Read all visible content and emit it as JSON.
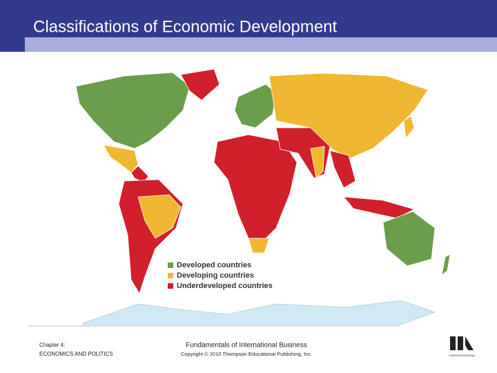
{
  "header": {
    "title": "Classifications of Economic Development"
  },
  "legend": [
    {
      "label": "Developed countries",
      "color": "#6a9e4b"
    },
    {
      "label": "Developing countries",
      "color": "#f0b830"
    },
    {
      "label": "Underdeveloped countries",
      "color": "#d0202b"
    }
  ],
  "footer": {
    "chapter": "Chapter 4:",
    "chapter_title": "ECONOMICS AND POLITICS",
    "book": "Fundamentals of International Business",
    "copyright": "Copyright © 2010 Thompson Educational Publishing, Inc.",
    "logo": "THOMPSON EDUCATIONAL"
  }
}
